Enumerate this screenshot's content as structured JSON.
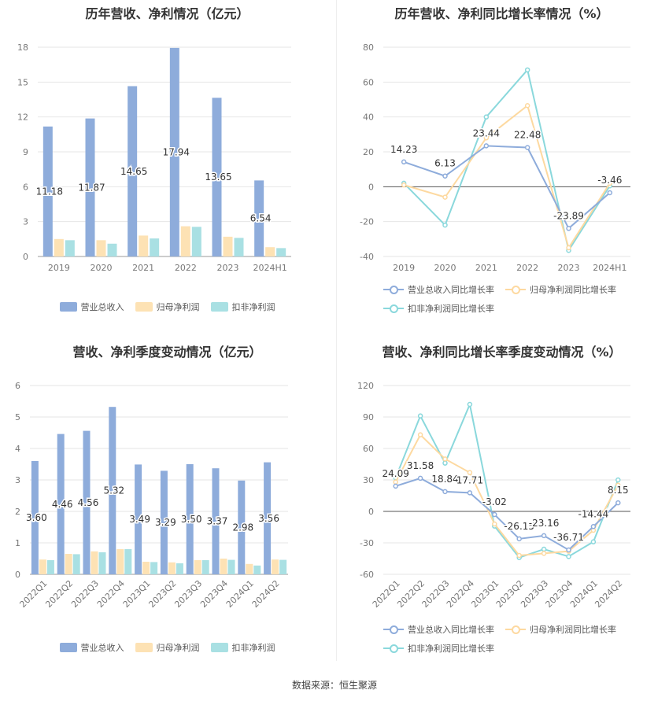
{
  "colors": {
    "revenue": "#8eacdb",
    "net_profit": "#fde2b4",
    "deducted": "#a9e0e3",
    "line_revenue": "#8eacdb",
    "line_net": "#fdd9a0",
    "line_deducted": "#8ad8dc"
  },
  "source": "数据来源：恒生聚源",
  "legend_bar": [
    "营业总收入",
    "归母净利润",
    "扣非净利润"
  ],
  "legend_line": [
    "营业总收入同比增长率",
    "归母净利润同比增长率",
    "扣非净利润同比增长率"
  ],
  "chart_data": [
    {
      "type": "bar",
      "title": "历年营收、净利情况（亿元）",
      "categories": [
        "2019",
        "2020",
        "2021",
        "2022",
        "2023",
        "2024H1"
      ],
      "ylim": [
        0,
        18
      ],
      "yticks": [
        0,
        3,
        6,
        9,
        12,
        15,
        18
      ],
      "series": [
        {
          "name": "营业总收入",
          "values": [
            11.18,
            11.87,
            14.65,
            17.94,
            13.65,
            6.54
          ],
          "labels": [
            "11.18",
            "11.87",
            "14.65",
            "17.94",
            "13.65",
            "6.54"
          ]
        },
        {
          "name": "归母净利润",
          "values": [
            1.5,
            1.4,
            1.8,
            2.6,
            1.7,
            0.8
          ]
        },
        {
          "name": "扣非净利润",
          "values": [
            1.4,
            1.1,
            1.55,
            2.55,
            1.6,
            0.72
          ]
        }
      ]
    },
    {
      "type": "line",
      "title": "历年营收、净利同比增长率情况（%）",
      "categories": [
        "2019",
        "2020",
        "2021",
        "2022",
        "2023",
        "2024H1"
      ],
      "ylim": [
        -40,
        80
      ],
      "yticks": [
        -40,
        -20,
        0,
        20,
        40,
        60,
        80
      ],
      "series": [
        {
          "name": "营业总收入同比增长率",
          "values": [
            14.23,
            6.13,
            23.44,
            22.48,
            -23.89,
            -3.46
          ],
          "labels": [
            "14.23",
            "6.13",
            "23.44",
            "22.48",
            "-23.89",
            "-3.46"
          ]
        },
        {
          "name": "归母净利润同比增长率",
          "values": [
            1.0,
            -6.0,
            28.0,
            46.5,
            -35.0,
            2.0
          ]
        },
        {
          "name": "扣非净利润同比增长率",
          "values": [
            2.0,
            -22.0,
            40.0,
            67.0,
            -36.5,
            0.5
          ]
        }
      ]
    },
    {
      "type": "bar",
      "title": "营收、净利季度变动情况（亿元）",
      "categories": [
        "2022Q1",
        "2022Q2",
        "2022Q3",
        "2022Q4",
        "2023Q1",
        "2023Q2",
        "2023Q3",
        "2023Q4",
        "2024Q1",
        "2024Q2"
      ],
      "ylim": [
        0,
        6
      ],
      "yticks": [
        0,
        1,
        2,
        3,
        4,
        5,
        6
      ],
      "series": [
        {
          "name": "营业总收入",
          "values": [
            3.6,
            4.46,
            4.56,
            5.32,
            3.49,
            3.29,
            3.5,
            3.37,
            2.98,
            3.56
          ],
          "labels": [
            "3.60",
            "4.46",
            "4.56",
            "5.32",
            "3.49",
            "3.29",
            "3.50",
            "3.37",
            "2.98",
            "3.56"
          ]
        },
        {
          "name": "归母净利润",
          "values": [
            0.47,
            0.65,
            0.73,
            0.8,
            0.4,
            0.38,
            0.45,
            0.5,
            0.33,
            0.47
          ]
        },
        {
          "name": "扣非净利润",
          "values": [
            0.45,
            0.64,
            0.7,
            0.8,
            0.39,
            0.35,
            0.45,
            0.46,
            0.28,
            0.46
          ]
        }
      ]
    },
    {
      "type": "line",
      "title": "营收、净利同比增长率季度变动情况（%）",
      "categories": [
        "2022Q1",
        "2022Q2",
        "2022Q3",
        "2022Q4",
        "2023Q1",
        "2023Q2",
        "2023Q3",
        "2023Q4",
        "2024Q1",
        "2024Q2"
      ],
      "ylim": [
        -60,
        120
      ],
      "yticks": [
        -60,
        -30,
        0,
        30,
        60,
        90,
        120
      ],
      "series": [
        {
          "name": "营业总收入同比增长率",
          "values": [
            24.09,
            31.58,
            18.84,
            17.71,
            -3.02,
            -26.15,
            -23.16,
            -36.71,
            -14.44,
            8.15
          ],
          "labels": [
            "24.09",
            "31.58",
            "18.84",
            "17.71",
            "-3.02",
            "-26.15",
            "-23.16",
            "-36.71",
            "-14.44",
            "8.15"
          ]
        },
        {
          "name": "归母净利润同比增长率",
          "values": [
            28,
            73,
            50,
            37,
            -12,
            -42,
            -40,
            -38,
            -18,
            25
          ]
        },
        {
          "name": "扣非净利润同比增长率",
          "values": [
            32,
            91,
            46,
            102,
            -14,
            -44,
            -36,
            -43,
            -29,
            30
          ]
        }
      ]
    }
  ]
}
